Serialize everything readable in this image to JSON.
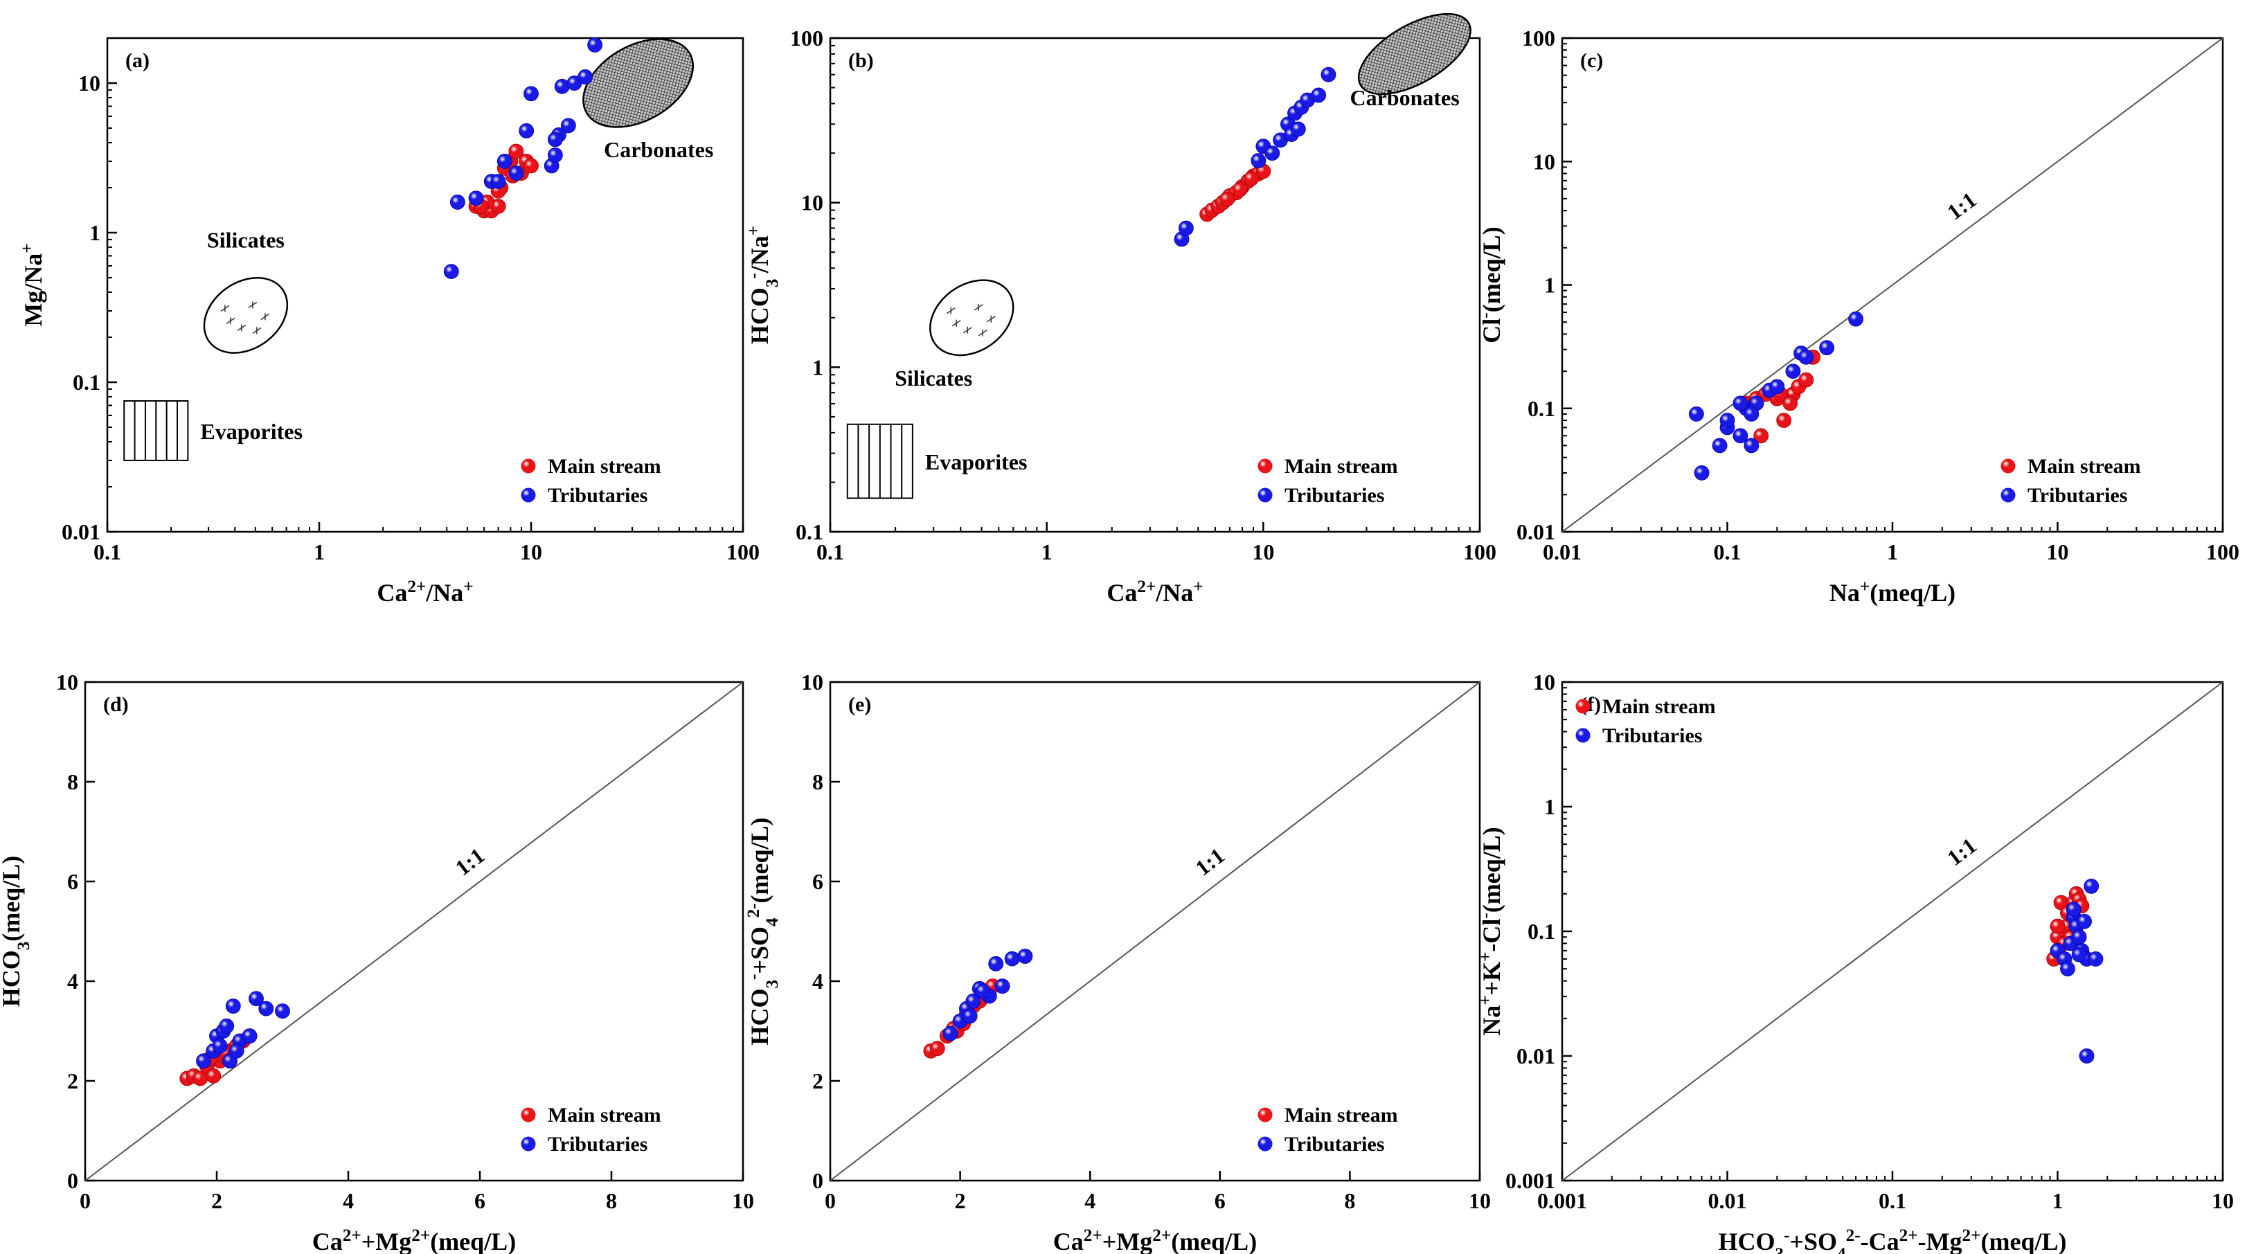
{
  "colors": {
    "main_stream": "#e8141a",
    "tributaries": "#1a1ae6",
    "axis": "#000000"
  },
  "legend": {
    "main_stream": "Main stream",
    "tributaries": "Tributaries"
  },
  "chart_data": [
    {
      "panel": "(a)",
      "type": "scatter",
      "xscale": "log",
      "yscale": "log",
      "xlim": [
        0.1,
        100
      ],
      "ylim": [
        0.01,
        20
      ],
      "xticks": [
        "0.1",
        "1",
        "10",
        "100"
      ],
      "yticks": [
        "0.01",
        "0.1",
        "1",
        "10"
      ],
      "xlabel_main": "Ca",
      "xlabel_sup": "2+",
      "xlabel_tail": "/Na",
      "xlabel_sup2": "+",
      "ylabel_main": "Mg/Na",
      "ylabel_sup": "+",
      "legend_position": "bottom-right",
      "regions": [
        {
          "name": "Silicates",
          "kind": "ellipse",
          "label": "Silicates"
        },
        {
          "name": "Evaporites",
          "kind": "box",
          "label": "Evaporites"
        },
        {
          "name": "Carbonates",
          "kind": "ellipse",
          "label": "Carbonates"
        }
      ],
      "series": [
        {
          "name": "Main stream",
          "x": [
            5.5,
            6.0,
            6.5,
            7.0,
            7.2,
            7.5,
            8.0,
            8.5,
            9.0,
            9.5,
            10.0,
            7.0,
            6.2,
            5.8,
            8.2
          ],
          "y": [
            1.5,
            1.4,
            1.4,
            1.5,
            2.0,
            2.7,
            3.0,
            3.5,
            2.5,
            3.0,
            2.8,
            1.9,
            1.6,
            1.5,
            2.4
          ]
        },
        {
          "name": "Tributaries",
          "x": [
            4.2,
            4.5,
            5.5,
            6.5,
            7.5,
            8.5,
            9.5,
            10.0,
            12.5,
            13.0,
            13.5,
            14.0,
            15.0,
            16.0,
            18.0,
            20.0,
            13.0,
            7.0
          ],
          "y": [
            0.55,
            1.6,
            1.7,
            2.2,
            3.0,
            2.5,
            4.8,
            8.5,
            2.8,
            3.3,
            4.5,
            9.5,
            5.2,
            10.0,
            11.0,
            18.0,
            4.2,
            2.2
          ]
        }
      ]
    },
    {
      "panel": "(b)",
      "type": "scatter",
      "xscale": "log",
      "yscale": "log",
      "xlim": [
        0.1,
        100
      ],
      "ylim": [
        0.1,
        100
      ],
      "xticks": [
        "0.1",
        "1",
        "10",
        "100"
      ],
      "yticks": [
        "0.1",
        "1",
        "10",
        "100"
      ],
      "xlabel_main": "Ca",
      "xlabel_sup": "2+",
      "xlabel_tail": "/Na",
      "xlabel_sup2": "+",
      "ylabel_main": "HCO",
      "ylabel_sub": "3",
      "ylabel_sup": "-",
      "ylabel_tail": "/Na",
      "ylabel_sup2": "+",
      "legend_position": "bottom-right",
      "regions": [
        {
          "name": "Silicates",
          "kind": "ellipse",
          "label": "Silicates"
        },
        {
          "name": "Evaporites",
          "kind": "box",
          "label": "Evaporites"
        },
        {
          "name": "Carbonates",
          "kind": "ellipse",
          "label": "Carbonates"
        }
      ],
      "series": [
        {
          "name": "Main stream",
          "x": [
            5.5,
            5.8,
            6.2,
            6.5,
            7.0,
            7.5,
            8.0,
            8.5,
            9.0,
            9.5,
            10.0,
            6.8,
            7.8,
            8.8
          ],
          "y": [
            8.5,
            9.0,
            9.5,
            10.0,
            11.0,
            11.5,
            12.5,
            13.5,
            14.5,
            15.0,
            15.5,
            10.5,
            12.0,
            14.0
          ]
        },
        {
          "name": "Tributaries",
          "x": [
            4.2,
            4.4,
            9.5,
            10.0,
            11.0,
            12.0,
            13.0,
            14.0,
            15.0,
            16.0,
            18.0,
            20.0,
            13.5,
            14.5
          ],
          "y": [
            6.0,
            7.0,
            18.0,
            22.0,
            20.0,
            24.0,
            30.0,
            35.0,
            38.0,
            42.0,
            45.0,
            60.0,
            26.0,
            28.0
          ]
        }
      ]
    },
    {
      "panel": "(c)",
      "type": "scatter",
      "xscale": "log",
      "yscale": "log",
      "xlim": [
        0.01,
        100
      ],
      "ylim": [
        0.01,
        100
      ],
      "xticks": [
        "0.01",
        "0.1",
        "1",
        "10",
        "100"
      ],
      "yticks": [
        "0.01",
        "0.1",
        "1",
        "10",
        "100"
      ],
      "xlabel_main": "Na",
      "xlabel_sup": "+",
      "xlabel_tail": "(meq/L)",
      "ylabel_main": "Cl",
      "ylabel_sup": "-",
      "ylabel_tail": "(meq/L)",
      "ref_line_label": "1:1",
      "legend_position": "bottom-right",
      "series": [
        {
          "name": "Main stream",
          "x": [
            0.13,
            0.15,
            0.17,
            0.2,
            0.22,
            0.25,
            0.27,
            0.3,
            0.33,
            0.16,
            0.21,
            0.24
          ],
          "y": [
            0.11,
            0.12,
            0.13,
            0.12,
            0.08,
            0.13,
            0.15,
            0.17,
            0.26,
            0.06,
            0.13,
            0.11
          ]
        },
        {
          "name": "Tributaries",
          "x": [
            0.065,
            0.07,
            0.09,
            0.1,
            0.1,
            0.12,
            0.13,
            0.14,
            0.15,
            0.18,
            0.2,
            0.25,
            0.28,
            0.3,
            0.4,
            0.6,
            0.14,
            0.12
          ],
          "y": [
            0.09,
            0.03,
            0.05,
            0.07,
            0.08,
            0.06,
            0.1,
            0.05,
            0.11,
            0.14,
            0.15,
            0.2,
            0.28,
            0.26,
            0.31,
            0.53,
            0.09,
            0.11
          ]
        }
      ]
    },
    {
      "panel": "(d)",
      "type": "scatter",
      "xscale": "linear",
      "yscale": "linear",
      "xlim": [
        0,
        10
      ],
      "ylim": [
        0,
        10
      ],
      "xticks": [
        "0",
        "2",
        "4",
        "6",
        "8",
        "10"
      ],
      "yticks": [
        "0",
        "2",
        "4",
        "6",
        "8",
        "10"
      ],
      "xlabel_main": "Ca",
      "xlabel_sup": "2+",
      "xlabel_tail": "+Mg",
      "xlabel_sup2": "2+",
      "xlabel_tail2": "(meq/L)",
      "ylabel_main": "HCO",
      "ylabel_sub": "3",
      "ylabel_tail": "(meq/L)",
      "ref_line_label": "1:1",
      "legend_position": "bottom-right",
      "series": [
        {
          "name": "Main stream",
          "x": [
            1.55,
            1.65,
            1.75,
            1.85,
            1.95,
            2.05,
            2.1,
            2.2,
            2.3,
            2.4,
            2.5,
            1.9,
            2.15
          ],
          "y": [
            2.05,
            2.1,
            2.05,
            2.3,
            2.1,
            2.4,
            2.5,
            2.6,
            2.7,
            2.8,
            2.9,
            2.45,
            2.55
          ]
        },
        {
          "name": "Tributaries",
          "x": [
            1.8,
            1.95,
            2.0,
            2.1,
            2.15,
            2.2,
            2.25,
            2.35,
            2.5,
            2.6,
            2.75,
            3.0,
            2.05,
            2.3
          ],
          "y": [
            2.4,
            2.6,
            2.9,
            3.0,
            3.1,
            2.4,
            3.5,
            2.8,
            2.9,
            3.65,
            3.45,
            3.4,
            2.7,
            2.6
          ]
        }
      ]
    },
    {
      "panel": "(e)",
      "type": "scatter",
      "xscale": "linear",
      "yscale": "linear",
      "xlim": [
        0,
        10
      ],
      "ylim": [
        0,
        10
      ],
      "xticks": [
        "0",
        "2",
        "4",
        "6",
        "8",
        "10"
      ],
      "yticks": [
        "0",
        "2",
        "4",
        "6",
        "8",
        "10"
      ],
      "xlabel_main": "Ca",
      "xlabel_sup": "2+",
      "xlabel_tail": "+Mg",
      "xlabel_sup2": "2+",
      "xlabel_tail2": "(meq/L)",
      "ylabel_main": "HCO",
      "ylabel_sub": "3",
      "ylabel_sup": "-",
      "ylabel_tail": "+SO",
      "ylabel_sub2": "4",
      "ylabel_sup2": "2-",
      "ylabel_tail2": "(meq/L)",
      "ref_line_label": "1:1",
      "legend_position": "bottom-right",
      "series": [
        {
          "name": "Main stream",
          "x": [
            1.55,
            1.65,
            1.8,
            1.9,
            2.0,
            2.1,
            2.2,
            2.3,
            2.4,
            2.5,
            1.95,
            2.05
          ],
          "y": [
            2.6,
            2.65,
            2.9,
            3.05,
            3.2,
            3.35,
            3.5,
            3.6,
            3.8,
            3.9,
            3.0,
            3.15
          ]
        },
        {
          "name": "Tributaries",
          "x": [
            1.85,
            2.0,
            2.1,
            2.2,
            2.3,
            2.45,
            2.55,
            2.65,
            2.8,
            3.0,
            2.15,
            2.35
          ],
          "y": [
            2.95,
            3.2,
            3.45,
            3.6,
            3.85,
            3.7,
            4.35,
            3.9,
            4.45,
            4.5,
            3.3,
            3.8
          ]
        }
      ]
    },
    {
      "panel": "(f)",
      "type": "scatter",
      "xscale": "log",
      "yscale": "log",
      "xlim": [
        0.001,
        10
      ],
      "ylim": [
        0.001,
        10
      ],
      "xticks": [
        "0.001",
        "0.01",
        "0.1",
        "1",
        "10"
      ],
      "yticks": [
        "0.001",
        "0.01",
        "0.1",
        "1",
        "10"
      ],
      "xlabel_main": "HCO",
      "xlabel_sub": "3",
      "xlabel_sup": "-",
      "xlabel_tail": "+SO",
      "xlabel_sub2": "4",
      "xlabel_sup2": "2-",
      "xlabel_tail2": "-Ca",
      "xlabel_sup3": "2+",
      "xlabel_tail3": "-Mg",
      "xlabel_sup4": "2+",
      "xlabel_tail4": "(meq/L)",
      "ylabel_main": "Na",
      "ylabel_sup": "+",
      "ylabel_tail": "+K",
      "ylabel_sup2": "+",
      "ylabel_tail2": "-Cl",
      "ylabel_sup3": "-",
      "ylabel_tail3": "(meq/L)",
      "ref_line_label": "1:1",
      "legend_position": "top-left",
      "series": [
        {
          "name": "Main stream",
          "x": [
            0.95,
            1.0,
            1.05,
            1.1,
            1.15,
            1.2,
            1.25,
            1.3,
            1.35,
            1.4,
            1.0,
            1.15
          ],
          "y": [
            0.06,
            0.09,
            0.17,
            0.08,
            0.11,
            0.09,
            0.17,
            0.2,
            0.18,
            0.16,
            0.11,
            0.14
          ]
        },
        {
          "name": "Tributaries",
          "x": [
            1.0,
            1.1,
            1.15,
            1.2,
            1.25,
            1.3,
            1.35,
            1.4,
            1.45,
            1.5,
            1.6,
            1.7,
            1.5,
            1.25,
            1.35
          ],
          "y": [
            0.07,
            0.06,
            0.05,
            0.08,
            0.13,
            0.11,
            0.09,
            0.07,
            0.12,
            0.06,
            0.23,
            0.06,
            0.01,
            0.15,
            0.065
          ]
        }
      ]
    }
  ]
}
